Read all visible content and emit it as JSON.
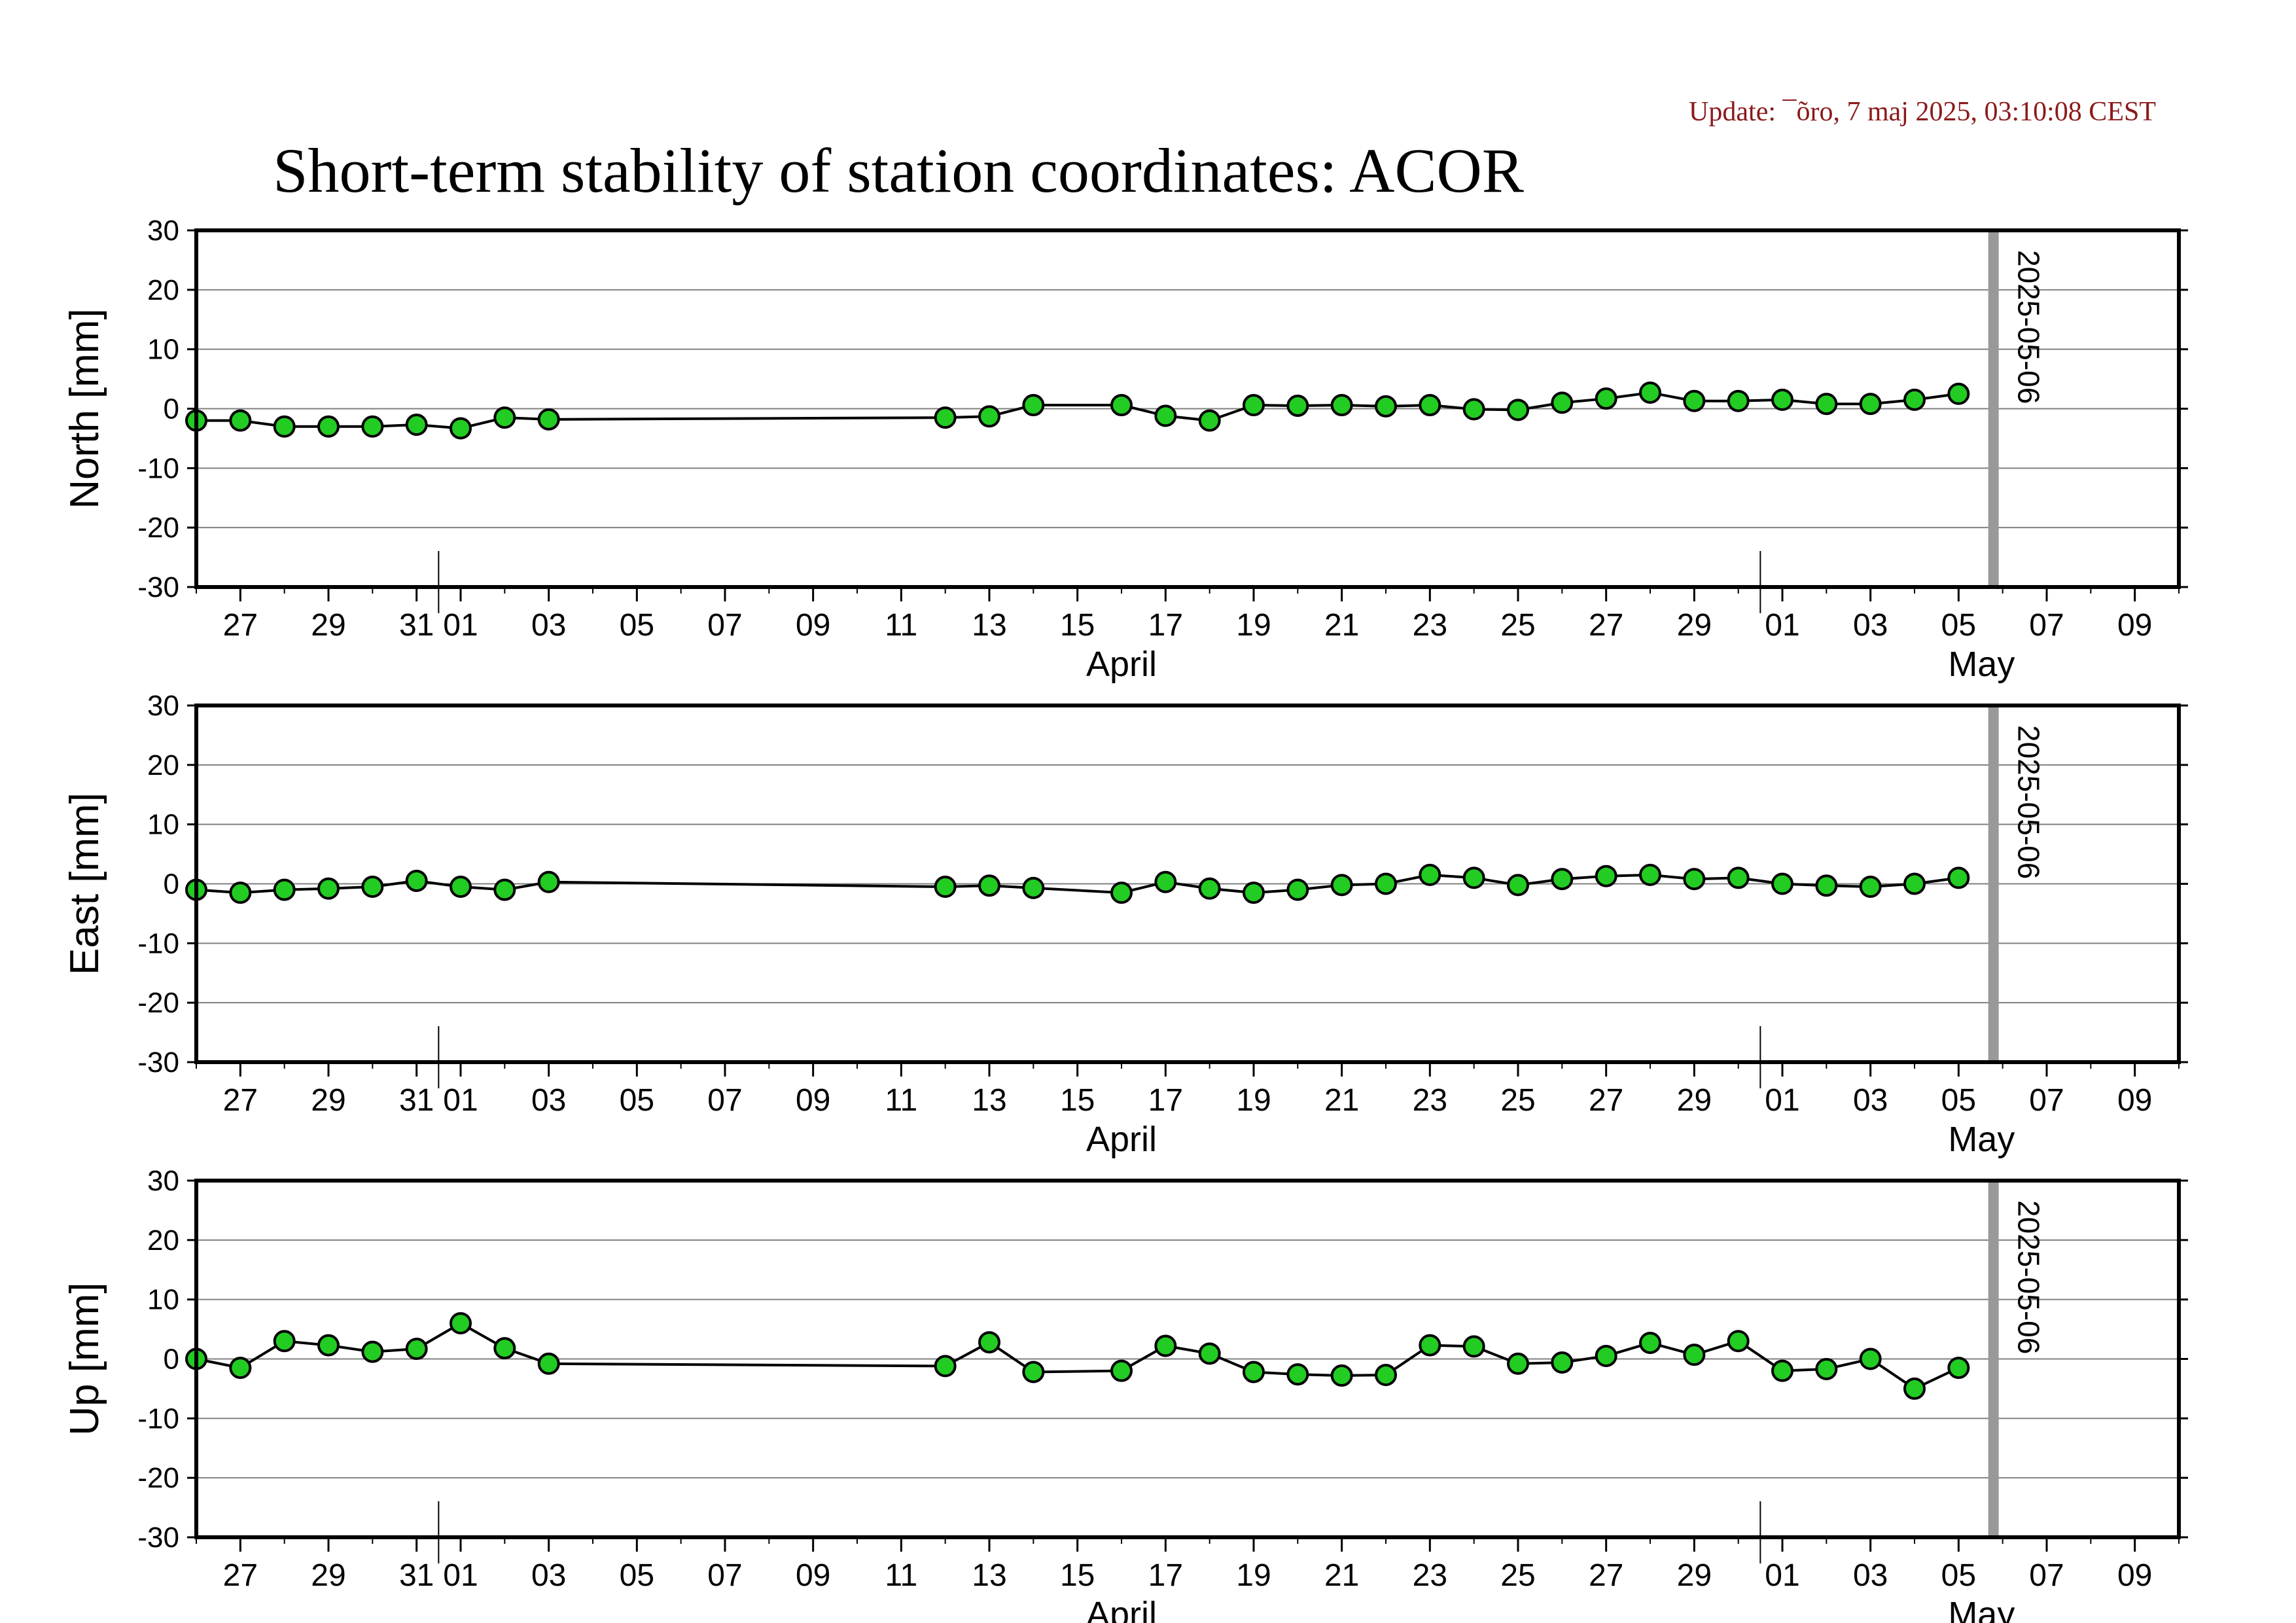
{
  "update_text": "Update: ¯õro, 7 maj 2025, 03:10:08 CEST",
  "title": "Short-term stability of station coordinates: ACOR",
  "colors": {
    "update_text": "#8b1a1a",
    "marker_fill": "#22cc22",
    "marker_stroke": "#000000",
    "line": "#000000",
    "grid": "#808080",
    "vline": "#999999"
  },
  "chart_data": [
    {
      "type": "line",
      "ylabel": "North [mm]",
      "ylim": [
        -30,
        30
      ],
      "yticks": [
        30,
        20,
        10,
        0,
        -10,
        -20,
        -30
      ],
      "ytick_labels": [
        "30",
        "20",
        "10",
        "0",
        "-10",
        "-20",
        "-30"
      ],
      "xlim": [
        "2025-03-26",
        "2025-05-10"
      ],
      "xtick_labels": [
        "27",
        "29",
        "31",
        "01",
        "03",
        "05",
        "07",
        "09",
        "11",
        "13",
        "15",
        "17",
        "19",
        "21",
        "23",
        "25",
        "27",
        "29",
        "01",
        "03",
        "05",
        "07",
        "09"
      ],
      "month_labels": [
        "April",
        "May"
      ],
      "grid": true,
      "marker_line": {
        "date": "2025-05-06",
        "label": "2025-05-06"
      },
      "series": [
        {
          "x": [
            "2025-03-26",
            "2025-03-27",
            "2025-03-28",
            "2025-03-29",
            "2025-03-30",
            "2025-03-31",
            "2025-04-01",
            "2025-04-02",
            "2025-04-03",
            "2025-04-12",
            "2025-04-13",
            "2025-04-14",
            "2025-04-16",
            "2025-04-17",
            "2025-04-18",
            "2025-04-19",
            "2025-04-20",
            "2025-04-21",
            "2025-04-22",
            "2025-04-23",
            "2025-04-24",
            "2025-04-25",
            "2025-04-26",
            "2025-04-27",
            "2025-04-28",
            "2025-04-29",
            "2025-04-30",
            "2025-05-01",
            "2025-05-02",
            "2025-05-03",
            "2025-05-04",
            "2025-05-05"
          ],
          "y": [
            -2,
            -2,
            -3,
            -3,
            -3,
            -2.7,
            -3.3,
            -1.5,
            -1.8,
            -1.5,
            -1.3,
            0.6,
            0.6,
            -1.2,
            -2,
            0.6,
            0.5,
            0.6,
            0.4,
            0.6,
            -0.1,
            -0.2,
            1,
            1.7,
            2.7,
            1.3,
            1.3,
            1.5,
            0.8,
            0.8,
            1.5,
            2.5
          ]
        }
      ]
    },
    {
      "type": "line",
      "ylabel": "East [mm]",
      "ylim": [
        -30,
        30
      ],
      "yticks": [
        30,
        20,
        10,
        0,
        -10,
        -20,
        -30
      ],
      "ytick_labels": [
        "30",
        "20",
        "10",
        "0",
        "-10",
        "-20",
        "-30"
      ],
      "xlim": [
        "2025-03-26",
        "2025-05-10"
      ],
      "xtick_labels": [
        "27",
        "29",
        "31",
        "01",
        "03",
        "05",
        "07",
        "09",
        "11",
        "13",
        "15",
        "17",
        "19",
        "21",
        "23",
        "25",
        "27",
        "29",
        "01",
        "03",
        "05",
        "07",
        "09"
      ],
      "month_labels": [
        "April",
        "May"
      ],
      "grid": true,
      "marker_line": {
        "date": "2025-05-06",
        "label": "2025-05-06"
      },
      "series": [
        {
          "x": [
            "2025-03-26",
            "2025-03-27",
            "2025-03-28",
            "2025-03-29",
            "2025-03-30",
            "2025-03-31",
            "2025-04-01",
            "2025-04-02",
            "2025-04-03",
            "2025-04-12",
            "2025-04-13",
            "2025-04-14",
            "2025-04-16",
            "2025-04-17",
            "2025-04-18",
            "2025-04-19",
            "2025-04-20",
            "2025-04-21",
            "2025-04-22",
            "2025-04-23",
            "2025-04-24",
            "2025-04-25",
            "2025-04-26",
            "2025-04-27",
            "2025-04-28",
            "2025-04-29",
            "2025-04-30",
            "2025-05-01",
            "2025-05-02",
            "2025-05-03",
            "2025-05-04",
            "2025-05-05"
          ],
          "y": [
            -1,
            -1.5,
            -1,
            -0.8,
            -0.5,
            0.5,
            -0.5,
            -1,
            0.3,
            -0.5,
            -0.3,
            -0.7,
            -1.5,
            0.3,
            -0.8,
            -1.5,
            -1,
            -0.2,
            0,
            1.5,
            1,
            -0.2,
            0.8,
            1.3,
            1.5,
            0.8,
            1,
            0,
            -0.3,
            -0.5,
            0,
            1
          ]
        }
      ]
    },
    {
      "type": "line",
      "ylabel": "Up [mm]",
      "ylim": [
        -30,
        30
      ],
      "yticks": [
        30,
        20,
        10,
        0,
        -10,
        -20,
        -30
      ],
      "ytick_labels": [
        "30",
        "20",
        "10",
        "0",
        "-10",
        "-20",
        "-30"
      ],
      "xlim": [
        "2025-03-26",
        "2025-05-10"
      ],
      "xtick_labels": [
        "27",
        "29",
        "31",
        "01",
        "03",
        "05",
        "07",
        "09",
        "11",
        "13",
        "15",
        "17",
        "19",
        "21",
        "23",
        "25",
        "27",
        "29",
        "01",
        "03",
        "05",
        "07",
        "09"
      ],
      "month_labels": [
        "April",
        "May"
      ],
      "grid": true,
      "marker_line": {
        "date": "2025-05-06",
        "label": "2025-05-06"
      },
      "series": [
        {
          "x": [
            "2025-03-26",
            "2025-03-27",
            "2025-03-28",
            "2025-03-29",
            "2025-03-30",
            "2025-03-31",
            "2025-04-01",
            "2025-04-02",
            "2025-04-03",
            "2025-04-12",
            "2025-04-13",
            "2025-04-14",
            "2025-04-16",
            "2025-04-17",
            "2025-04-18",
            "2025-04-19",
            "2025-04-20",
            "2025-04-21",
            "2025-04-22",
            "2025-04-23",
            "2025-04-24",
            "2025-04-25",
            "2025-04-26",
            "2025-04-27",
            "2025-04-28",
            "2025-04-29",
            "2025-04-30",
            "2025-05-01",
            "2025-05-02",
            "2025-05-03",
            "2025-05-04",
            "2025-05-05"
          ],
          "y": [
            0,
            -1.5,
            3,
            2.3,
            1.2,
            1.7,
            6,
            1.8,
            -0.8,
            -1.2,
            2.8,
            -2.2,
            -2,
            2.2,
            0.9,
            -2.2,
            -2.6,
            -2.8,
            -2.7,
            2.3,
            2.1,
            -0.8,
            -0.6,
            0.5,
            2.7,
            0.7,
            3,
            -2,
            -1.7,
            0,
            -5,
            -1.5
          ]
        }
      ]
    }
  ]
}
